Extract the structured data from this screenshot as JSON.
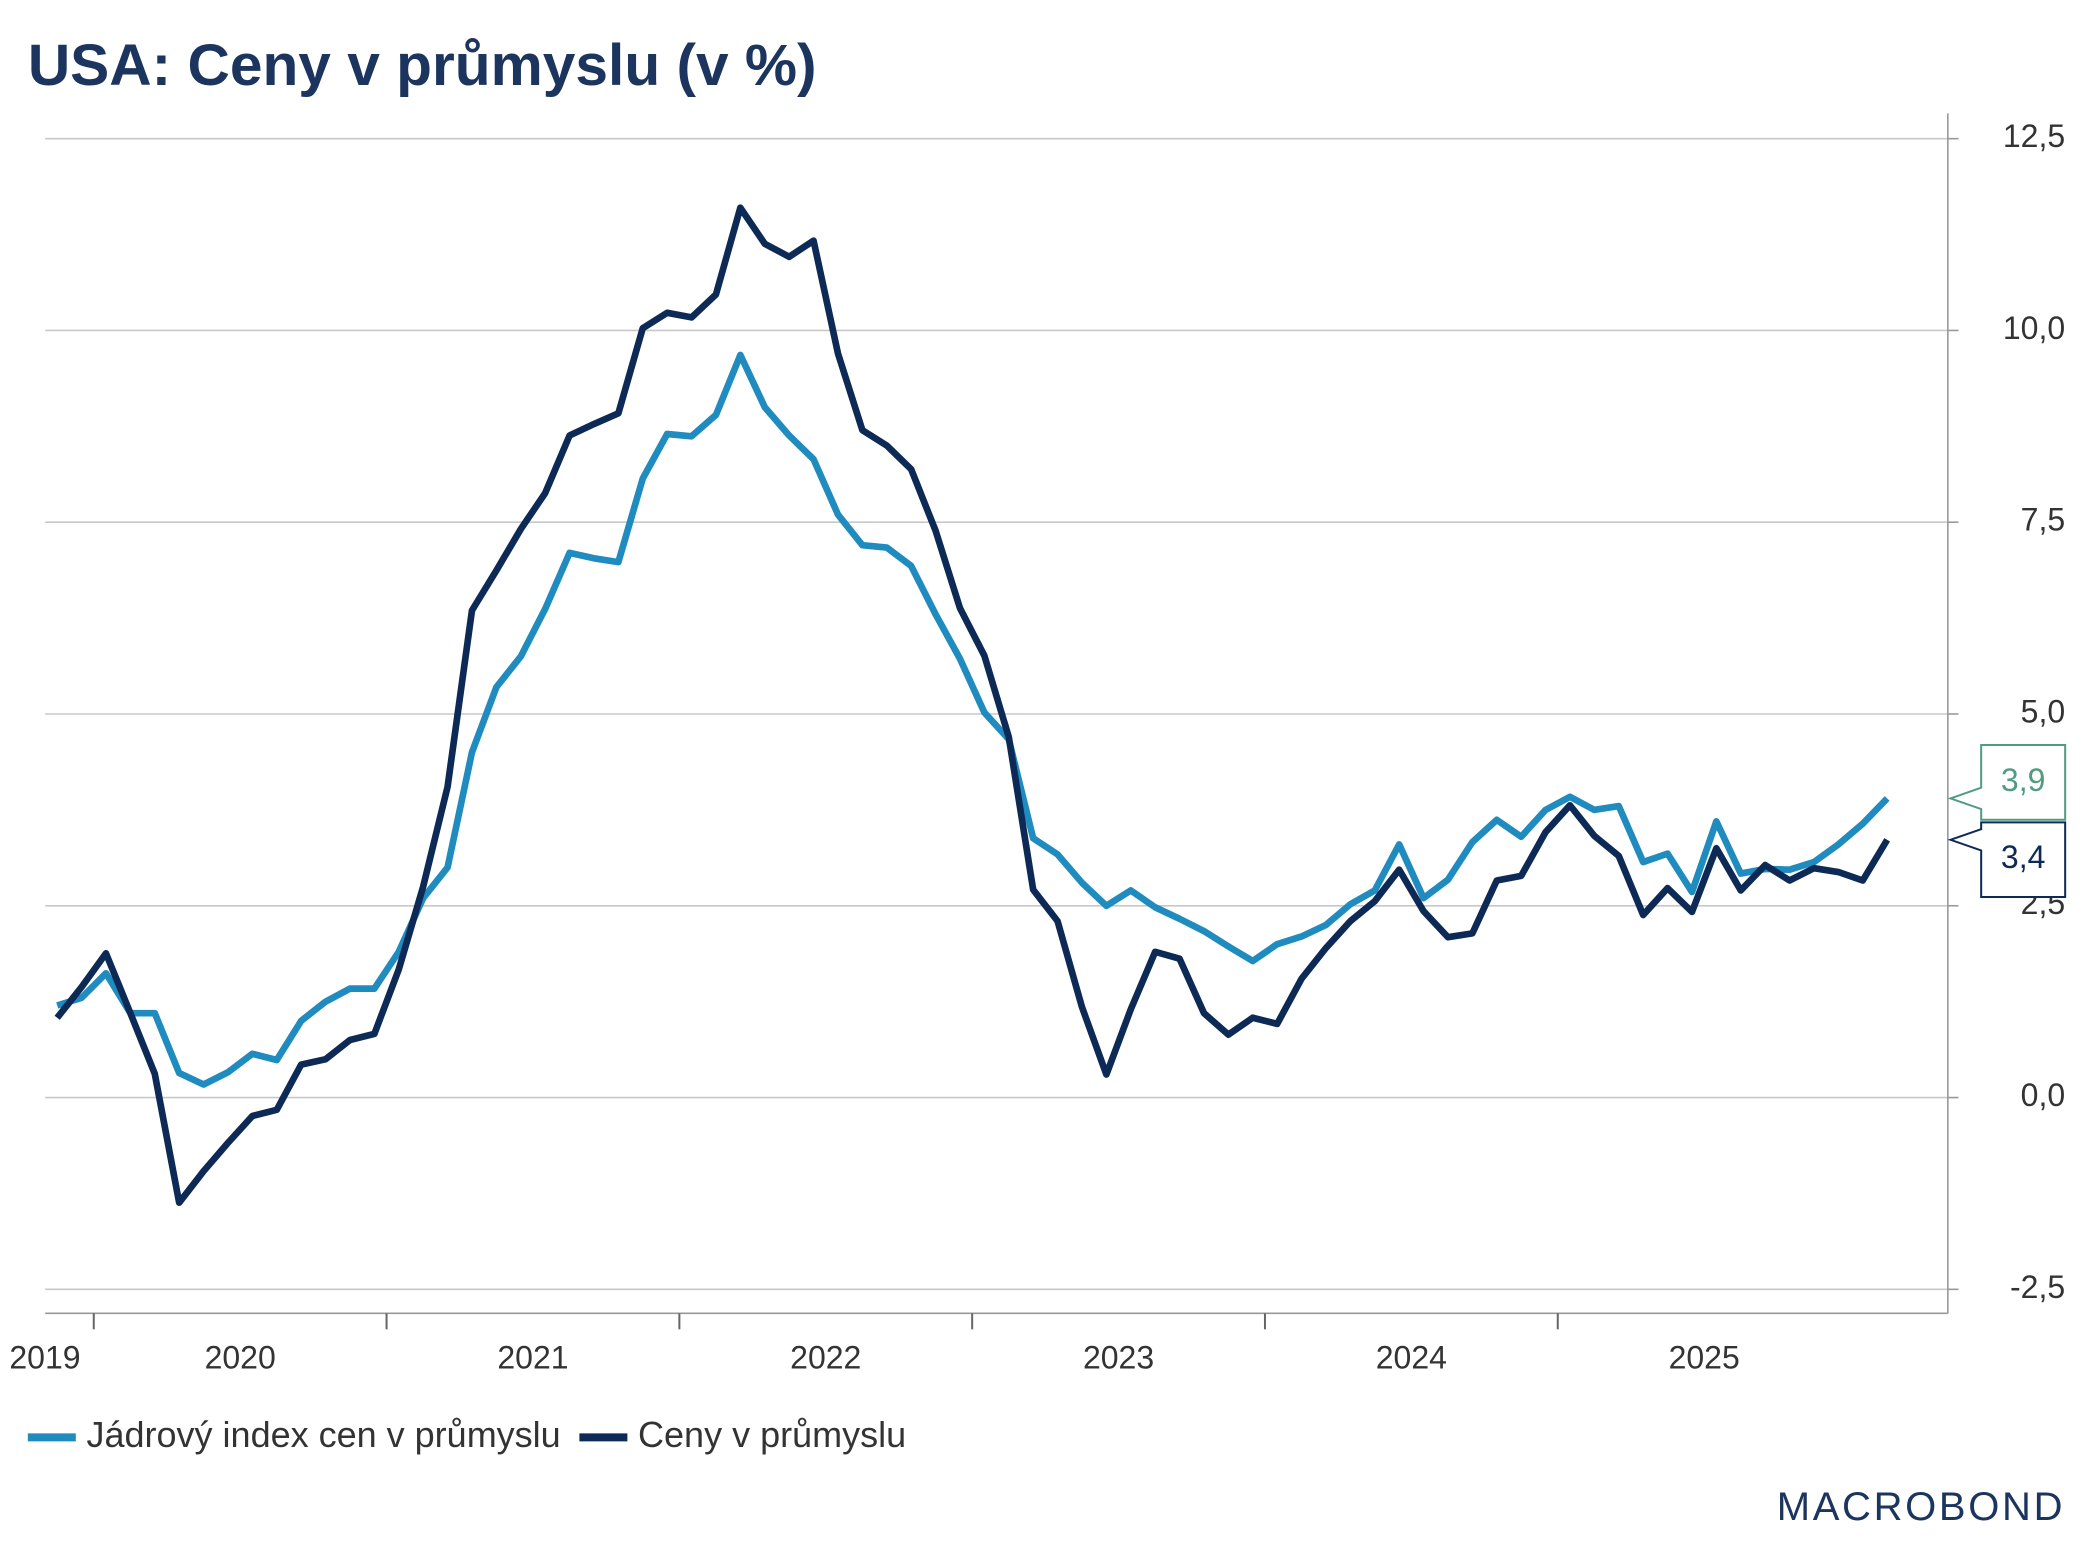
{
  "chart_data": {
    "type": "line",
    "title": "USA: Ceny v průmyslu (v %)",
    "categories": [
      "2019",
      null,
      null,
      null,
      null,
      null,
      null,
      null,
      "2020",
      null,
      null,
      null,
      null,
      null,
      null,
      null,
      null,
      null,
      null,
      null,
      "2021",
      null,
      null,
      null,
      null,
      null,
      null,
      null,
      null,
      null,
      null,
      null,
      "2022",
      null,
      null,
      null,
      null,
      null,
      null,
      null,
      null,
      null,
      null,
      null,
      "2023",
      null,
      null,
      null,
      null,
      null,
      null,
      null,
      null,
      null,
      null,
      null,
      "2024",
      null,
      null,
      null,
      null,
      null,
      null,
      null,
      null,
      null,
      null,
      null,
      "2025",
      null,
      null,
      null,
      null,
      null,
      null,
      null
    ],
    "series": [
      {
        "name": "Jádrový index cen v průmyslu",
        "color": "#1f8bbf",
        "values": [
          1.2,
          1.3,
          1.62,
          1.1,
          1.1,
          0.32,
          0.17,
          0.33,
          0.57,
          0.49,
          1.0,
          1.25,
          1.42,
          1.42,
          1.9,
          2.6,
          3.0,
          4.5,
          5.35,
          5.75,
          6.37,
          7.1,
          7.03,
          6.98,
          8.07,
          8.65,
          8.62,
          8.9,
          9.68,
          9.0,
          8.63,
          8.32,
          7.6,
          7.2,
          7.17,
          6.93,
          6.3,
          5.72,
          5.02,
          4.67,
          3.38,
          3.17,
          2.8,
          2.5,
          2.7,
          2.48,
          2.33,
          2.17,
          1.97,
          1.78,
          2.0,
          2.1,
          2.25,
          2.52,
          2.7,
          3.3,
          2.6,
          2.84,
          3.33,
          3.62,
          3.4,
          3.75,
          3.92,
          3.75,
          3.8,
          3.07,
          3.18,
          2.68,
          3.6,
          2.92,
          2.98,
          2.97,
          3.07,
          3.3,
          3.57,
          3.9
        ],
        "value_labels": [
          null,
          null,
          null,
          null,
          null,
          null,
          null,
          null,
          null,
          null,
          null,
          null,
          null,
          null,
          null,
          null,
          null,
          null,
          null,
          null,
          null,
          null,
          null,
          null,
          null,
          null,
          null,
          null,
          null,
          null,
          null,
          null,
          null,
          null,
          null,
          null,
          null,
          null,
          null,
          null,
          null,
          null,
          null,
          null,
          null,
          null,
          null,
          null,
          null,
          null,
          null,
          null,
          null,
          null,
          null,
          null,
          null,
          null,
          null,
          null,
          null,
          null,
          null,
          null,
          null,
          null,
          null,
          null,
          null,
          null,
          null,
          null,
          null,
          null,
          null,
          "3,9"
        ],
        "label_color": "#4f9c80"
      },
      {
        "name": "Ceny v průmyslu",
        "color": "#0d2a56",
        "values": [
          1.04,
          1.44,
          1.88,
          1.1,
          0.31,
          -1.37,
          -0.96,
          -0.59,
          -0.24,
          -0.16,
          0.43,
          0.5,
          0.75,
          0.83,
          1.67,
          2.75,
          4.05,
          6.35,
          6.87,
          7.41,
          7.88,
          8.63,
          8.78,
          8.92,
          10.03,
          10.23,
          10.17,
          10.47,
          11.6,
          11.13,
          10.96,
          11.17,
          9.7,
          8.7,
          8.5,
          8.19,
          7.39,
          6.38,
          5.76,
          4.7,
          2.71,
          2.3,
          1.18,
          0.3,
          1.15,
          1.9,
          1.81,
          1.1,
          0.82,
          1.04,
          0.96,
          1.55,
          1.95,
          2.3,
          2.56,
          2.97,
          2.43,
          2.09,
          2.14,
          2.83,
          2.89,
          3.46,
          3.81,
          3.41,
          3.15,
          2.38,
          2.73,
          2.42,
          3.25,
          2.7,
          3.03,
          2.83,
          2.99,
          2.94,
          2.83,
          3.36
        ],
        "value_labels": [
          null,
          null,
          null,
          null,
          null,
          null,
          null,
          null,
          null,
          null,
          null,
          null,
          null,
          null,
          null,
          null,
          null,
          null,
          null,
          null,
          null,
          null,
          null,
          null,
          null,
          null,
          null,
          null,
          null,
          null,
          null,
          null,
          null,
          null,
          null,
          null,
          null,
          null,
          null,
          null,
          null,
          null,
          null,
          null,
          null,
          null,
          null,
          null,
          null,
          null,
          null,
          null,
          null,
          null,
          null,
          null,
          null,
          null,
          null,
          null,
          null,
          null,
          null,
          null,
          null,
          null,
          null,
          null,
          null,
          null,
          null,
          null,
          null,
          null,
          null,
          "3,4"
        ],
        "label_color": "#0d2a56"
      }
    ],
    "ylim": [
      -2.5,
      12.5
    ],
    "yticks": [
      {
        "value": -2.5,
        "label": "-2,5"
      },
      {
        "value": 0,
        "label": "0,0"
      },
      {
        "value": 2.5,
        "label": "2,5"
      },
      {
        "value": 5,
        "label": "5,0"
      },
      {
        "value": 7.5,
        "label": "7,5"
      },
      {
        "value": 10,
        "label": "10,0"
      },
      {
        "value": 12.5,
        "label": "12,5"
      }
    ],
    "grid": true,
    "legend": "bottom-left",
    "logo": "MACROBOND"
  }
}
